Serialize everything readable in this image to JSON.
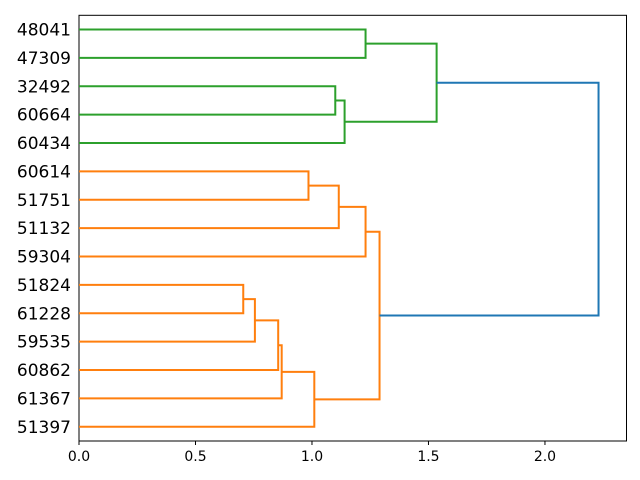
{
  "figure": {
    "title": "",
    "background_color": "#ffffff"
  },
  "chart_data": {
    "type": "dendrogram",
    "orientation": "left-labels-tree-grows-right",
    "title": "",
    "xlabel": "",
    "ylabel": "",
    "xlim": [
      0,
      2.35
    ],
    "grid": false,
    "legend": "none",
    "colors": {
      "green": "#2ca02c",
      "orange": "#ff7f0e",
      "blue": "#1f77b4",
      "spine": "#000000",
      "text": "#000000",
      "background": "#ffffff"
    },
    "leaves": [
      "48041",
      "47309",
      "32492",
      "60664",
      "60434",
      "60614",
      "51751",
      "51132",
      "59304",
      "51824",
      "61228",
      "59535",
      "60862",
      "61367",
      "51397"
    ],
    "xticks": {
      "values": [
        0,
        0.5,
        1.0,
        1.5,
        2.0
      ],
      "labels": [
        "0.0",
        "0.5",
        "1.0",
        "1.5",
        "2.0"
      ]
    },
    "links": [
      {
        "id": "g1",
        "a": "48041",
        "b": "47309",
        "height": 1.23,
        "color": "green"
      },
      {
        "id": "g2",
        "a": "32492",
        "b": "60664",
        "height": 1.1,
        "color": "green"
      },
      {
        "id": "g3",
        "a": "g2",
        "b": "60434",
        "height": 1.14,
        "color": "green"
      },
      {
        "id": "g4",
        "a": "g1",
        "b": "g3",
        "height": 1.535,
        "color": "green"
      },
      {
        "id": "o1",
        "a": "60614",
        "b": "51751",
        "height": 0.985,
        "color": "orange"
      },
      {
        "id": "o2",
        "a": "o1",
        "b": "51132",
        "height": 1.115,
        "color": "orange"
      },
      {
        "id": "o3",
        "a": "o2",
        "b": "59304",
        "height": 1.23,
        "color": "orange"
      },
      {
        "id": "o4",
        "a": "51824",
        "b": "61228",
        "height": 0.705,
        "color": "orange"
      },
      {
        "id": "o5",
        "a": "o4",
        "b": "59535",
        "height": 0.755,
        "color": "orange"
      },
      {
        "id": "o6",
        "a": "o5",
        "b": "60862",
        "height": 0.855,
        "color": "orange"
      },
      {
        "id": "o7",
        "a": "o6",
        "b": "61367",
        "height": 0.87,
        "color": "orange"
      },
      {
        "id": "o8",
        "a": "o7",
        "b": "51397",
        "height": 1.01,
        "color": "orange"
      },
      {
        "id": "o9",
        "a": "o3",
        "b": "o8",
        "height": 1.29,
        "color": "orange"
      },
      {
        "id": "root",
        "a": "g4",
        "b": "o9",
        "height": 2.23,
        "color": "blue"
      }
    ]
  }
}
